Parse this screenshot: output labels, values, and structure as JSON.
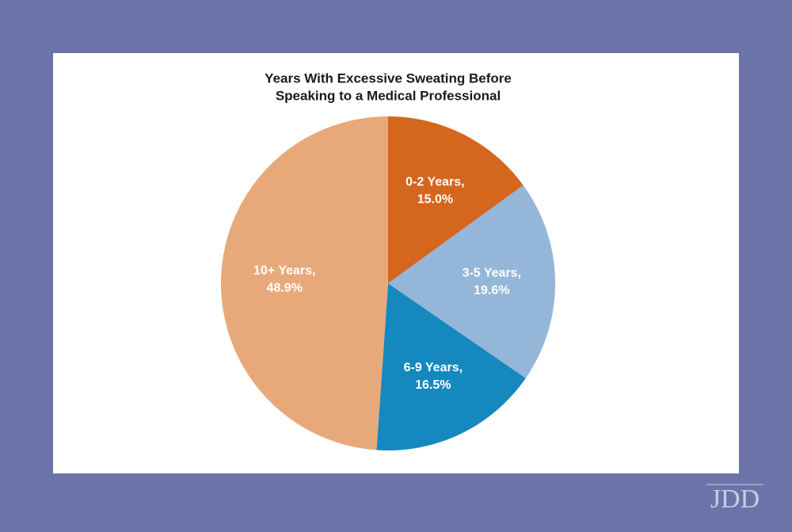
{
  "chart_data": {
    "type": "pie",
    "title": [
      "Years With Excessive Sweating Before",
      "Speaking to a Medical Professional"
    ],
    "categories": [
      "0-2 Years,",
      "3-5 Years,",
      "6-9 Years,",
      "10+ Years,"
    ],
    "values": [
      15.0,
      19.6,
      16.5,
      48.9
    ],
    "value_labels": [
      "15.0%",
      "19.6%",
      "16.5%",
      "48.9%"
    ],
    "colors": [
      "#d4661e",
      "#94b6d9",
      "#1589bf",
      "#e8a97a"
    ]
  },
  "watermark": "JDD"
}
